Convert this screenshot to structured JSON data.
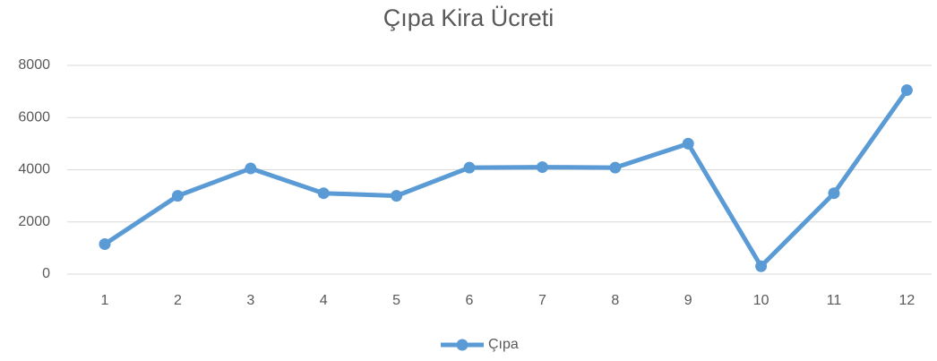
{
  "chart_data": {
    "type": "line",
    "title": "Çıpa Kira Ücreti",
    "categories": [
      "1",
      "2",
      "3",
      "4",
      "5",
      "6",
      "7",
      "8",
      "9",
      "10",
      "11",
      "12"
    ],
    "series": [
      {
        "name": "Çıpa",
        "color": "#5b9bd5",
        "values": [
          1150,
          3000,
          4050,
          3100,
          3000,
          4080,
          4100,
          4080,
          5000,
          300,
          3100,
          7050
        ]
      }
    ],
    "ylim": [
      0,
      8000
    ],
    "yticks": [
      0,
      2000,
      4000,
      6000,
      8000
    ],
    "grid": true,
    "legend": "bottom"
  }
}
